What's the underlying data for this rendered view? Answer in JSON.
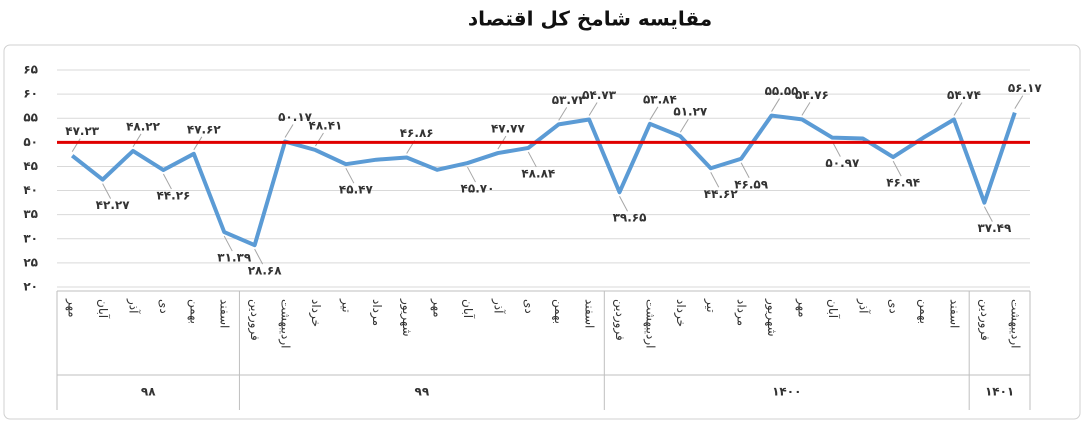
{
  "chart_data": {
    "type": "line",
    "title": "مقایسه شامخ کل اقتصاد",
    "groups": [
      {
        "label": "۹۸",
        "categories": [
          "مهر",
          "آبان",
          "آذر",
          "دی",
          "بهمن",
          "اسفند"
        ]
      },
      {
        "label": "۹۹",
        "categories": [
          "فروردین",
          "اردیبهشت",
          "خرداد",
          "تیر",
          "مرداد",
          "شهریور",
          "مهر",
          "آبان",
          "آذر",
          "دی",
          "بهمن",
          "اسفند"
        ]
      },
      {
        "label": "۱۴۰۰",
        "categories": [
          "فروردین",
          "اردیبهشت",
          "خرداد",
          "تیر",
          "مرداد",
          "شهریور",
          "مهر",
          "آبان",
          "آذر",
          "دی",
          "بهمن",
          "اسفند"
        ]
      },
      {
        "label": "۱۴۰۱",
        "categories": [
          "فروردین",
          "اردیبهشت"
        ]
      }
    ],
    "series": [
      {
        "color": "#5b9bd5",
        "values": [
          47.23,
          42.27,
          48.22,
          44.26,
          47.62,
          31.39,
          28.68,
          50.17,
          48.41,
          45.47,
          46.4,
          46.86,
          44.3,
          45.7,
          47.77,
          48.84,
          53.73,
          54.73,
          39.65,
          53.84,
          51.27,
          44.62,
          46.59,
          55.55,
          54.76,
          50.97,
          50.8,
          46.94,
          51.0,
          54.74,
          37.49,
          56.17
        ],
        "value_labels": [
          "۴۷.۲۳",
          "۴۲.۲۷",
          "۴۸.۲۲",
          "۴۴.۲۶",
          "۴۷.۶۲",
          "۳۱.۳۹",
          "۲۸.۶۸",
          "۵۰.۱۷",
          "۴۸.۴۱",
          "۴۵.۴۷",
          null,
          "۴۶.۸۶",
          null,
          "۴۵.۷۰",
          "۴۷.۷۷",
          "۴۸.۸۴",
          "۵۳.۷۳",
          "۵۴.۷۳",
          "۳۹.۶۵",
          "۵۳.۸۴",
          "۵۱.۲۷",
          "۴۴.۶۲",
          "۴۶.۵۹",
          "۵۵.۵۵",
          "۵۴.۷۶",
          "۵۰.۹۷",
          null,
          "۴۶.۹۴",
          null,
          "۵۴.۷۴",
          "۳۷.۴۹",
          "۵۶.۱۷"
        ]
      }
    ],
    "reference_line": {
      "value": 50,
      "color": "#e00000"
    },
    "ylim": [
      20,
      65
    ],
    "yticks": [
      {
        "value": 20,
        "label": "۲۰"
      },
      {
        "value": 25,
        "label": "۲۵"
      },
      {
        "value": 30,
        "label": "۳۰"
      },
      {
        "value": 35,
        "label": "۳۵"
      },
      {
        "value": 40,
        "label": "۴۰"
      },
      {
        "value": 45,
        "label": "۴۵"
      },
      {
        "value": 50,
        "label": "۵۰"
      },
      {
        "value": 55,
        "label": "۵۵"
      },
      {
        "value": 60,
        "label": "۶۰"
      },
      {
        "value": 65,
        "label": "۶۵"
      }
    ],
    "grid": true
  }
}
